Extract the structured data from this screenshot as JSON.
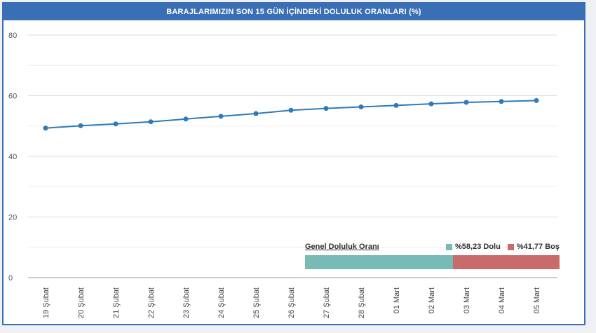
{
  "chart_data": {
    "type": "line",
    "title": "BARAJLARIMIZIN SON 15 GÜN İÇİNDEKİ DOLULUK ORANLARI (%)",
    "xlabel": "",
    "ylabel": "",
    "ylim": [
      0,
      80
    ],
    "yticks": [
      0,
      20,
      40,
      60,
      80
    ],
    "grid": true,
    "categories": [
      "19 Şubat",
      "20 Şubat",
      "21 Şubat",
      "22 Şubat",
      "23 Şubat",
      "24 Şubat",
      "25 Şubat",
      "26 Şubat",
      "27 Şubat",
      "28 Şubat",
      "01 Mart",
      "02 Mart",
      "03 Mart",
      "04 Mart",
      "05 Mart"
    ],
    "series": [
      {
        "values": [
          49.3,
          50.1,
          50.7,
          51.4,
          52.3,
          53.2,
          54.1,
          55.2,
          55.8,
          56.3,
          56.8,
          57.3,
          57.8,
          58.1,
          58.4
        ],
        "color": "#2f7ab9"
      }
    ]
  },
  "overlay": {
    "title": "Genel Doluluk Oranı",
    "full_label": "%58,23 Dolu",
    "empty_label": "%41,77 Boş",
    "full_value": 58.23,
    "empty_value": 41.77,
    "full_color": "#78bab6",
    "empty_color": "#c96b6b"
  }
}
